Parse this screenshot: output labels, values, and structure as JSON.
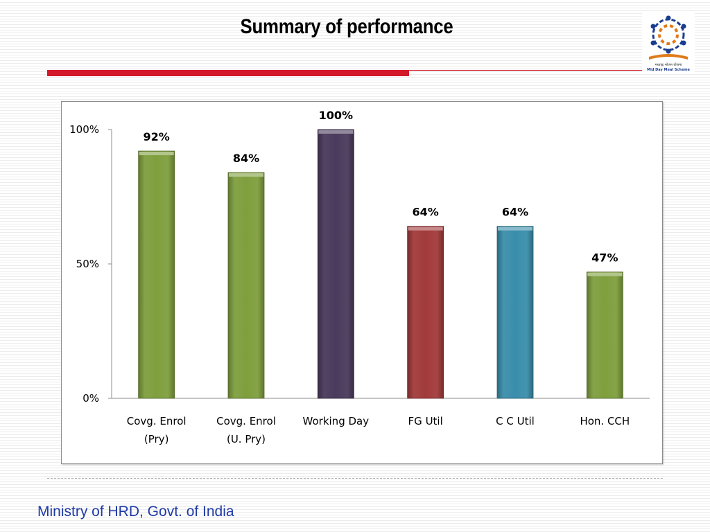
{
  "slide": {
    "title": "Summary of performance",
    "footer": "Ministry of HRD, Govt. of India",
    "logo_text_hindi": "मध्याह्न भोजन योजना",
    "logo_text_english": "Mid Day Meal Scheme",
    "accent_color": "#d3192a"
  },
  "chart_data": {
    "type": "bar",
    "categories": [
      [
        "Covg. Enrol",
        "(Pry)"
      ],
      [
        "Covg. Enrol",
        "(U. Pry)"
      ],
      [
        "Working Day"
      ],
      [
        "FG Util"
      ],
      [
        "C C Util"
      ],
      [
        "Hon. CCH"
      ]
    ],
    "values": [
      92,
      84,
      100,
      64,
      64,
      47
    ],
    "data_labels": [
      "92%",
      "84%",
      "100%",
      "64%",
      "64%",
      "47%"
    ],
    "colors": [
      "#7f9f3e",
      "#7f9f3e",
      "#4a3a5c",
      "#a23b3b",
      "#3a8eab",
      "#7f9f3e"
    ],
    "ylim": [
      0,
      100
    ],
    "yticks": [
      {
        "value": 0,
        "label": "0%"
      },
      {
        "value": 50,
        "label": "50%"
      },
      {
        "value": 100,
        "label": "100%"
      }
    ],
    "grid": false,
    "legend": "none",
    "xlabel": "",
    "ylabel": ""
  }
}
